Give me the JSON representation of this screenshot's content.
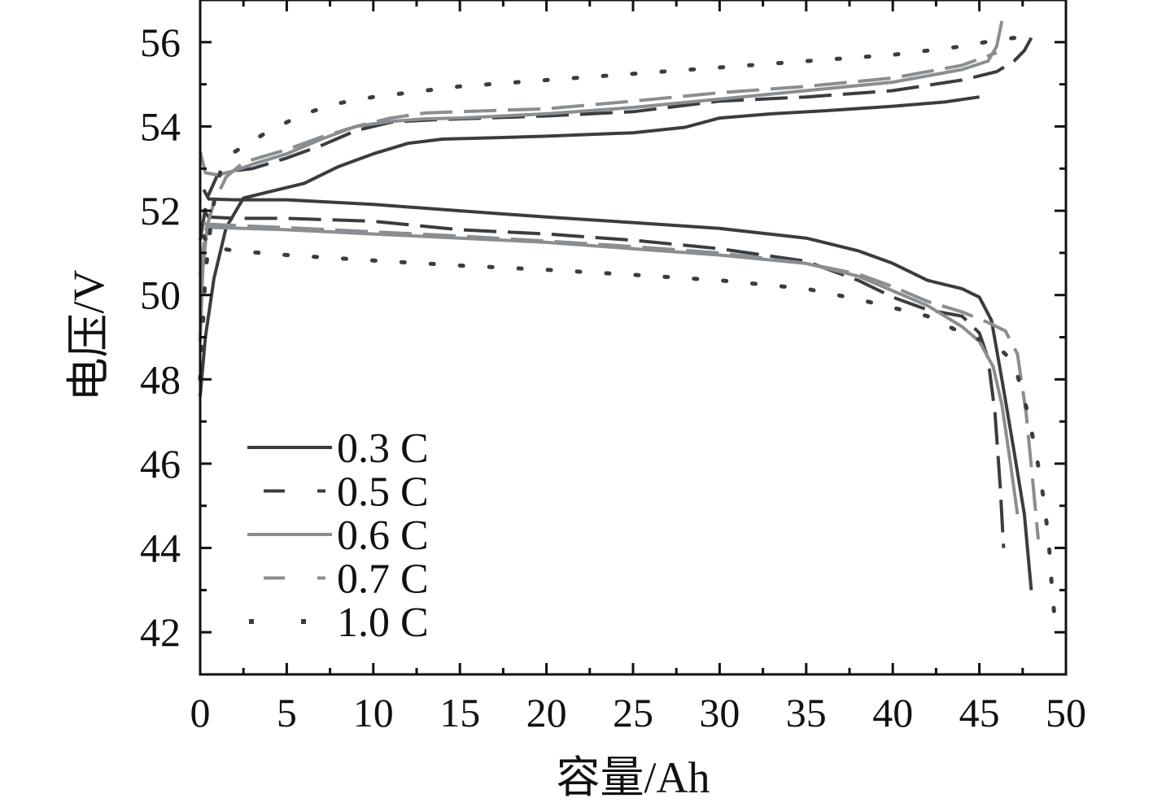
{
  "chart_data": {
    "type": "line",
    "xlabel": "容量/Ah",
    "ylabel": "电压/V",
    "xlim": [
      0,
      50
    ],
    "ylim": [
      41,
      57
    ],
    "x_ticks": [
      "0",
      "5",
      "10",
      "15",
      "20",
      "25",
      "30",
      "35",
      "40",
      "45",
      "50"
    ],
    "y_ticks": [
      "42",
      "44",
      "46",
      "48",
      "50",
      "52",
      "54",
      "56"
    ],
    "legend_position": "bottom-left",
    "grid": false,
    "series": [
      {
        "name": "0.3 C",
        "color": "#3a3d40",
        "dash": "solid",
        "charge": [
          [
            0,
            47.6
          ],
          [
            0.3,
            49.0
          ],
          [
            0.8,
            50.4
          ],
          [
            1.5,
            51.6
          ],
          [
            2.5,
            52.3
          ],
          [
            4,
            52.45
          ],
          [
            6,
            52.65
          ],
          [
            8,
            53.05
          ],
          [
            10,
            53.35
          ],
          [
            12,
            53.6
          ],
          [
            14,
            53.7
          ],
          [
            16,
            53.72
          ],
          [
            20,
            53.77
          ],
          [
            25,
            53.85
          ],
          [
            28,
            53.98
          ],
          [
            30,
            54.2
          ],
          [
            33,
            54.3
          ],
          [
            36,
            54.37
          ],
          [
            40,
            54.48
          ],
          [
            43,
            54.58
          ],
          [
            45,
            54.7
          ]
        ],
        "discharge": [
          [
            0.2,
            52.5
          ],
          [
            0.5,
            52.28
          ],
          [
            2,
            52.26
          ],
          [
            5,
            52.26
          ],
          [
            10,
            52.15
          ],
          [
            15,
            52.0
          ],
          [
            20,
            51.85
          ],
          [
            25,
            51.72
          ],
          [
            30,
            51.58
          ],
          [
            35,
            51.35
          ],
          [
            38,
            51.05
          ],
          [
            40,
            50.75
          ],
          [
            42,
            50.35
          ],
          [
            44,
            50.15
          ],
          [
            45,
            49.95
          ],
          [
            45.7,
            49.4
          ],
          [
            46.3,
            48.0
          ],
          [
            47,
            46.3
          ],
          [
            47.6,
            44.8
          ],
          [
            48.0,
            43.0
          ]
        ]
      },
      {
        "name": "0.5 C",
        "color": "#3a3d40",
        "dash": "long",
        "charge": [
          [
            0,
            51.3
          ],
          [
            0.4,
            52.3
          ],
          [
            1,
            52.85
          ],
          [
            2,
            52.95
          ],
          [
            3,
            53.0
          ],
          [
            5,
            53.25
          ],
          [
            7,
            53.55
          ],
          [
            9,
            53.9
          ],
          [
            11,
            54.1
          ],
          [
            13,
            54.15
          ],
          [
            15,
            54.18
          ],
          [
            20,
            54.25
          ],
          [
            25,
            54.35
          ],
          [
            30,
            54.6
          ],
          [
            35,
            54.7
          ],
          [
            40,
            54.85
          ],
          [
            44,
            55.1
          ],
          [
            46,
            55.3
          ],
          [
            47,
            55.55
          ],
          [
            47.6,
            55.8
          ],
          [
            48,
            56.1
          ]
        ],
        "discharge": [
          [
            0.2,
            52.0
          ],
          [
            0.5,
            51.85
          ],
          [
            2,
            51.82
          ],
          [
            5,
            51.82
          ],
          [
            10,
            51.75
          ],
          [
            15,
            51.55
          ],
          [
            20,
            51.45
          ],
          [
            25,
            51.3
          ],
          [
            30,
            51.1
          ],
          [
            35,
            50.8
          ],
          [
            38,
            50.35
          ],
          [
            40,
            49.95
          ],
          [
            42,
            49.65
          ],
          [
            44,
            49.5
          ],
          [
            45,
            49.1
          ],
          [
            45.5,
            48.5
          ],
          [
            45.9,
            47.2
          ],
          [
            46.2,
            45.5
          ],
          [
            46.4,
            44.0
          ]
        ]
      },
      {
        "name": "0.6 C",
        "color": "#8a8e91",
        "dash": "solid",
        "charge": [
          [
            0,
            53.4
          ],
          [
            0.3,
            52.9
          ],
          [
            1,
            52.85
          ],
          [
            2,
            52.95
          ],
          [
            3,
            53.1
          ],
          [
            5,
            53.35
          ],
          [
            7,
            53.7
          ],
          [
            9,
            54.0
          ],
          [
            11,
            54.12
          ],
          [
            13,
            54.18
          ],
          [
            15,
            54.2
          ],
          [
            20,
            54.3
          ],
          [
            25,
            54.45
          ],
          [
            30,
            54.65
          ],
          [
            35,
            54.85
          ],
          [
            40,
            55.05
          ],
          [
            44,
            55.35
          ],
          [
            45.5,
            55.55
          ],
          [
            46,
            55.9
          ],
          [
            46.3,
            56.5
          ]
        ],
        "discharge": [
          [
            0,
            48.9
          ],
          [
            0.15,
            50.6
          ],
          [
            0.4,
            51.6
          ],
          [
            1,
            51.6
          ],
          [
            5,
            51.55
          ],
          [
            10,
            51.45
          ],
          [
            15,
            51.35
          ],
          [
            20,
            51.25
          ],
          [
            25,
            51.1
          ],
          [
            30,
            50.95
          ],
          [
            35,
            50.75
          ],
          [
            38,
            50.45
          ],
          [
            40,
            50.1
          ],
          [
            42,
            49.75
          ],
          [
            44,
            49.25
          ],
          [
            45,
            48.9
          ],
          [
            45.8,
            48.3
          ],
          [
            46.3,
            47.4
          ],
          [
            46.8,
            46.0
          ],
          [
            47.2,
            44.8
          ]
        ]
      },
      {
        "name": "0.7 C",
        "color": "#8a8e91",
        "dash": "long",
        "charge": [
          [
            0,
            50.5
          ],
          [
            0.3,
            51.5
          ],
          [
            0.8,
            52.2
          ],
          [
            1.5,
            52.8
          ],
          [
            2.5,
            53.15
          ],
          [
            5,
            53.45
          ],
          [
            7,
            53.75
          ],
          [
            9,
            54.0
          ],
          [
            11,
            54.2
          ],
          [
            13,
            54.32
          ],
          [
            15,
            54.35
          ],
          [
            20,
            54.42
          ],
          [
            25,
            54.6
          ],
          [
            30,
            54.8
          ],
          [
            35,
            54.95
          ],
          [
            40,
            55.15
          ],
          [
            44,
            55.45
          ],
          [
            46,
            55.75
          ]
        ],
        "discharge": [
          [
            0.2,
            51.7
          ],
          [
            0.5,
            51.68
          ],
          [
            2,
            51.65
          ],
          [
            5,
            51.6
          ],
          [
            10,
            51.5
          ],
          [
            15,
            51.4
          ],
          [
            20,
            51.28
          ],
          [
            25,
            51.15
          ],
          [
            30,
            51.0
          ],
          [
            35,
            50.75
          ],
          [
            38,
            50.5
          ],
          [
            40,
            50.2
          ],
          [
            42,
            49.85
          ],
          [
            44,
            49.6
          ],
          [
            45.5,
            49.35
          ],
          [
            46.5,
            49.15
          ],
          [
            47.2,
            48.6
          ],
          [
            47.7,
            47.2
          ],
          [
            48.1,
            45.5
          ],
          [
            48.4,
            44.2
          ]
        ]
      },
      {
        "name": "1.0 C",
        "color": "#3a3d40",
        "dash": "dotted",
        "charge": [
          [
            0,
            48.0
          ],
          [
            0.3,
            50.5
          ],
          [
            0.7,
            52.0
          ],
          [
            1.2,
            53.0
          ],
          [
            2,
            53.4
          ],
          [
            4,
            53.9
          ],
          [
            6,
            54.3
          ],
          [
            8,
            54.55
          ],
          [
            10,
            54.7
          ],
          [
            13,
            54.85
          ],
          [
            15,
            54.95
          ],
          [
            20,
            55.1
          ],
          [
            25,
            55.25
          ],
          [
            30,
            55.4
          ],
          [
            35,
            55.55
          ],
          [
            40,
            55.7
          ],
          [
            44,
            55.9
          ],
          [
            46,
            56.05
          ],
          [
            47,
            56.1
          ],
          [
            48.2,
            56.05
          ]
        ],
        "discharge": [
          [
            0.2,
            51.4
          ],
          [
            0.5,
            51.15
          ],
          [
            2,
            51.05
          ],
          [
            5,
            50.95
          ],
          [
            10,
            50.82
          ],
          [
            15,
            50.7
          ],
          [
            20,
            50.6
          ],
          [
            25,
            50.48
          ],
          [
            30,
            50.35
          ],
          [
            35,
            50.15
          ],
          [
            38,
            49.9
          ],
          [
            40,
            49.7
          ],
          [
            42,
            49.5
          ],
          [
            44,
            49.1
          ],
          [
            46,
            48.8
          ],
          [
            47,
            48.4
          ],
          [
            47.8,
            47.2
          ],
          [
            48.3,
            46.2
          ],
          [
            48.7,
            45.2
          ],
          [
            49.0,
            44.2
          ],
          [
            49.2,
            43.0
          ],
          [
            49.4,
            42.1
          ]
        ]
      }
    ]
  }
}
